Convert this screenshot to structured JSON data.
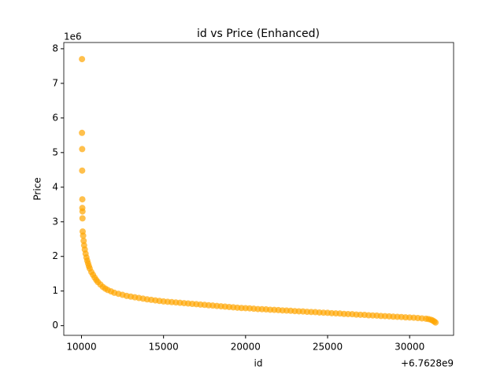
{
  "chart_data": {
    "type": "scatter",
    "title": "id vs Price (Enhanced)",
    "xlabel": "id",
    "ylabel": "Price",
    "x_offset_text": "+6.7628e9",
    "y_offset_text": "1e6",
    "color": "#ffa500",
    "xlim": [
      8920,
      32680
    ],
    "ylim": [
      -0.28,
      8.18
    ],
    "xticks": [
      10000,
      15000,
      20000,
      25000,
      30000
    ],
    "yticks": [
      0,
      1,
      2,
      3,
      4,
      5,
      6,
      7,
      8
    ],
    "x": [
      10030,
      10030,
      10040,
      10040,
      10050,
      10050,
      10060,
      10060,
      10070,
      10100,
      10130,
      10160,
      10200,
      10250,
      10300,
      10350,
      10400,
      10450,
      10500,
      10600,
      10700,
      10800,
      10900,
      11000,
      11150,
      11300,
      11450,
      11600,
      11800,
      12000,
      12250,
      12500,
      12750,
      13000,
      13250,
      13500,
      13750,
      14000,
      14250,
      14500,
      14750,
      15000,
      15250,
      15500,
      15750,
      16000,
      16250,
      16500,
      16750,
      17000,
      17250,
      17500,
      17750,
      18000,
      18250,
      18500,
      18750,
      19000,
      19250,
      19500,
      19750,
      20000,
      20250,
      20500,
      20750,
      21000,
      21250,
      21500,
      21750,
      22000,
      22250,
      22500,
      22750,
      23000,
      23250,
      23500,
      23750,
      24000,
      24250,
      24500,
      24750,
      25000,
      25250,
      25500,
      25750,
      26000,
      26250,
      26500,
      26750,
      27000,
      27250,
      27500,
      27750,
      28000,
      28250,
      28500,
      28750,
      29000,
      29250,
      29500,
      29750,
      30000,
      30250,
      30500,
      30750,
      31000,
      31150,
      31300,
      31400,
      31500,
      31580
    ],
    "values": [
      7.7,
      5.57,
      5.1,
      4.48,
      3.65,
      3.4,
      3.3,
      3.1,
      2.72,
      2.6,
      2.45,
      2.32,
      2.2,
      2.08,
      1.97,
      1.88,
      1.8,
      1.72,
      1.65,
      1.55,
      1.47,
      1.39,
      1.32,
      1.26,
      1.19,
      1.12,
      1.07,
      1.03,
      0.99,
      0.95,
      0.92,
      0.89,
      0.86,
      0.84,
      0.82,
      0.8,
      0.78,
      0.76,
      0.745,
      0.73,
      0.715,
      0.7,
      0.69,
      0.68,
      0.67,
      0.66,
      0.65,
      0.64,
      0.63,
      0.62,
      0.61,
      0.6,
      0.59,
      0.58,
      0.57,
      0.56,
      0.55,
      0.54,
      0.53,
      0.52,
      0.51,
      0.505,
      0.5,
      0.49,
      0.48,
      0.475,
      0.47,
      0.46,
      0.455,
      0.45,
      0.44,
      0.435,
      0.43,
      0.42,
      0.415,
      0.41,
      0.4,
      0.395,
      0.39,
      0.38,
      0.375,
      0.37,
      0.36,
      0.355,
      0.35,
      0.34,
      0.335,
      0.33,
      0.32,
      0.315,
      0.31,
      0.3,
      0.295,
      0.29,
      0.28,
      0.275,
      0.27,
      0.26,
      0.255,
      0.25,
      0.24,
      0.235,
      0.23,
      0.22,
      0.21,
      0.2,
      0.19,
      0.17,
      0.15,
      0.12,
      0.09
    ]
  }
}
